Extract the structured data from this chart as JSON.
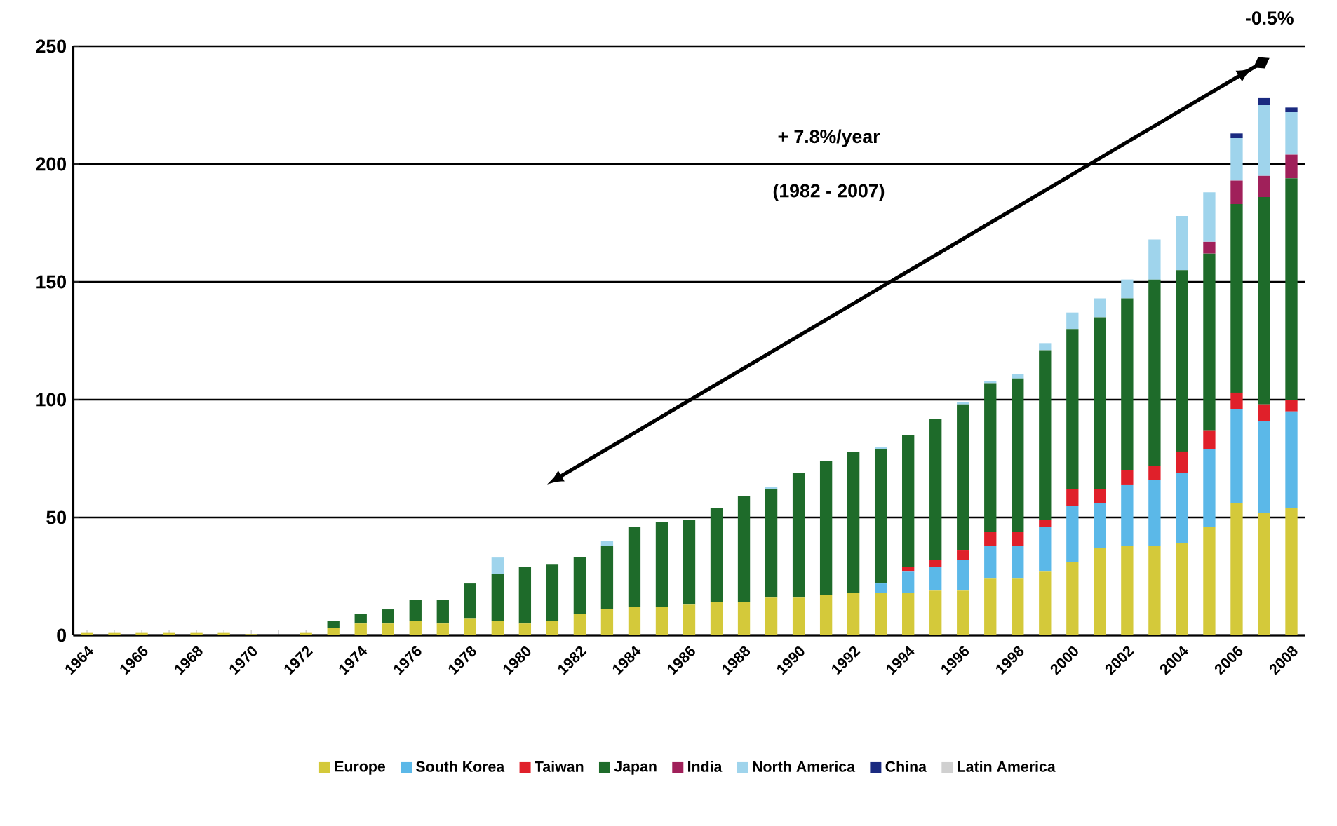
{
  "chart_data": {
    "type": "bar",
    "stacked": true,
    "categories": [
      "1964",
      null,
      "1966",
      null,
      "1968",
      null,
      "1970",
      null,
      "1972",
      null,
      "1974",
      null,
      "1976",
      null,
      "1978",
      null,
      "1980",
      null,
      "1982",
      null,
      "1984",
      null,
      "1986",
      null,
      "1988",
      null,
      "1990",
      null,
      "1992",
      null,
      "1994",
      null,
      "1996",
      null,
      "1998",
      null,
      "2000",
      null,
      "2002",
      null,
      "2004",
      null,
      "2006",
      null,
      "2008"
    ],
    "series": [
      {
        "name": "Europe",
        "color": "#d4c93a",
        "values": [
          1,
          1,
          1,
          1,
          1,
          1,
          0.5,
          0,
          1,
          3,
          5,
          5,
          6,
          5,
          7,
          6,
          5,
          6,
          9,
          11,
          12,
          12,
          13,
          14,
          14,
          16,
          16,
          17,
          18,
          18,
          18,
          19,
          19,
          24,
          24,
          27,
          31,
          37,
          38,
          38,
          39,
          46,
          56,
          52,
          54
        ]
      },
      {
        "name": "South Korea",
        "color": "#5bb8e8",
        "values": [
          0,
          0,
          0,
          0,
          0,
          0,
          0,
          0,
          0,
          0,
          0,
          0,
          0,
          0,
          0,
          0,
          0,
          0,
          0,
          0,
          0,
          0,
          0,
          0,
          0,
          0,
          0,
          0,
          0,
          4,
          9,
          10,
          13,
          14,
          14,
          19,
          24,
          19,
          26,
          28,
          30,
          33,
          40,
          39,
          41
        ]
      },
      {
        "name": "Taiwan",
        "color": "#e0202a",
        "values": [
          0,
          0,
          0,
          0,
          0,
          0,
          0,
          0,
          0,
          0,
          0,
          0,
          0,
          0,
          0,
          0,
          0,
          0,
          0,
          0,
          0,
          0,
          0,
          0,
          0,
          0,
          0,
          0,
          0,
          0,
          2,
          3,
          4,
          6,
          6,
          3,
          7,
          6,
          6,
          6,
          9,
          8,
          7,
          7,
          5
        ]
      },
      {
        "name": "Japan",
        "color": "#1e6b2a",
        "values": [
          0,
          0,
          0,
          0,
          0,
          0,
          0,
          0,
          0,
          3,
          4,
          6,
          9,
          10,
          15,
          20,
          24,
          24,
          24,
          27,
          34,
          36,
          36,
          40,
          45,
          46,
          53,
          57,
          60,
          57,
          56,
          60,
          62,
          63,
          65,
          72,
          68,
          73,
          73,
          79,
          77,
          75,
          80,
          88,
          94
        ]
      },
      {
        "name": "India",
        "color": "#a0205a",
        "values": [
          0,
          0,
          0,
          0,
          0,
          0,
          0,
          0,
          0,
          0,
          0,
          0,
          0,
          0,
          0,
          0,
          0,
          0,
          0,
          0,
          0,
          0,
          0,
          0,
          0,
          0,
          0,
          0,
          0,
          0,
          0,
          0,
          0,
          0,
          0,
          0,
          0,
          0,
          0,
          0,
          0,
          5,
          10,
          9,
          10
        ]
      },
      {
        "name": "North America",
        "color": "#9fd4ec",
        "values": [
          0,
          0,
          0,
          0,
          0,
          0,
          0,
          0,
          0,
          0,
          0,
          0,
          0,
          0,
          0,
          7,
          0,
          0,
          0,
          2,
          0,
          0,
          0,
          0,
          0,
          1,
          0,
          0,
          0,
          1,
          0,
          0,
          1,
          1,
          2,
          3,
          7,
          8,
          8,
          17,
          23,
          21,
          18,
          30,
          18
        ]
      },
      {
        "name": "China",
        "color": "#1a2a80",
        "values": [
          0,
          0,
          0,
          0,
          0,
          0,
          0,
          0,
          0,
          0,
          0,
          0,
          0,
          0,
          0,
          0,
          0,
          0,
          0,
          0,
          0,
          0,
          0,
          0,
          0,
          0,
          0,
          0,
          0,
          0,
          0,
          0,
          0,
          0,
          0,
          0,
          0,
          0,
          0,
          0,
          0,
          0,
          2,
          3,
          2
        ]
      },
      {
        "name": "Latin America",
        "color": "#d0d0d0",
        "values": [
          0,
          0,
          0,
          0,
          0,
          0,
          0,
          0,
          0,
          0,
          0,
          0,
          0,
          0,
          0,
          0,
          0,
          0,
          0,
          0,
          0,
          0,
          0,
          0,
          0,
          0,
          0,
          0,
          0,
          0,
          0,
          0,
          0,
          0,
          0,
          0,
          0,
          0,
          0,
          0,
          0,
          0,
          0,
          0,
          0
        ]
      }
    ],
    "ylim": [
      0,
      250
    ],
    "yticks": [
      0,
      50,
      100,
      150,
      200,
      250
    ],
    "grid": "y",
    "legend": "bottom",
    "annotations": [
      "+ 7.8%/year",
      "(1982 - 2007)",
      "-0.5%"
    ]
  }
}
